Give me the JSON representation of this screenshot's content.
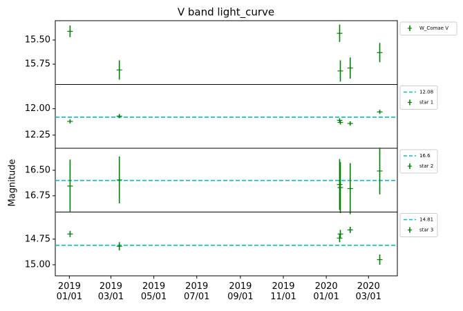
{
  "chart_data": {
    "type": "errorbar",
    "title": "V band light_curve",
    "ylabel": "Magnitude",
    "x": [
      "2019-01-02",
      "2019-03-13",
      "2020-01-20",
      "2020-01-21",
      "2020-02-04",
      "2020-03-17"
    ],
    "xlim": [
      "2018-12-12",
      "2020-04-11"
    ],
    "xticks": [
      {
        "value": "2019-01-01",
        "label": "2019\n01/01"
      },
      {
        "value": "2019-03-01",
        "label": "2019\n03/01"
      },
      {
        "value": "2019-05-01",
        "label": "2019\n05/01"
      },
      {
        "value": "2019-07-01",
        "label": "2019\n07/01"
      },
      {
        "value": "2019-09-01",
        "label": "2019\n09/01"
      },
      {
        "value": "2019-11-01",
        "label": "2019\n11/01"
      },
      {
        "value": "2020-01-01",
        "label": "2020\n01/01"
      },
      {
        "value": "2020-03-01",
        "label": "2020\n03/01"
      }
    ],
    "panels": [
      {
        "ylim": [
          15.96,
          15.3
        ],
        "yticks": [
          {
            "value": 15.5,
            "label": "15.50"
          },
          15.75
        ],
        "series": [
          {
            "name": "W_Comae V",
            "color": "#008000",
            "values": [
              15.41,
              15.81,
              15.43,
              15.82,
              15.79,
              15.63
            ],
            "errors": [
              0.06,
              0.1,
              0.09,
              0.11,
              0.11,
              0.1
            ]
          }
        ]
      },
      {
        "ylim": [
          12.375,
          11.77
        ],
        "yticks": [
          {
            "value": 12,
            "label": "12.00"
          },
          12.25
        ],
        "hline": {
          "value": 12.08,
          "color": "#00bfbf"
        },
        "series": [
          {
            "name": "star 1",
            "color": "#008000",
            "values": [
              12.12,
              12.07,
              12.11,
              12.13,
              12.14,
              12.03
            ],
            "errors": [
              0.02,
              0.02,
              0.02,
              0.02,
              0.02,
              0.02
            ]
          }
        ]
      },
      {
        "ylim": [
          16.91,
          16.284
        ],
        "yticks": [
          {
            "value": 16.5,
            "label": "16.50"
          },
          16.75
        ],
        "hline": {
          "value": 16.6,
          "color": "#00bfbf"
        },
        "series": [
          {
            "name": "star 2",
            "color": "#008000",
            "values": [
              16.655,
              16.595,
              16.64,
              16.67,
              16.68,
              16.507
            ],
            "errors": [
              0.26,
              0.23,
              0.25,
              0.25,
              0.25,
              0.23
            ]
          }
        ]
      },
      {
        "ylim": [
          15.108,
          14.486
        ],
        "yticks": [
          14.75,
          {
            "value": 15,
            "label": "15.00"
          }
        ],
        "hline": {
          "value": 14.81,
          "color": "#00bfbf"
        },
        "series": [
          {
            "name": "star 3",
            "color": "#008000",
            "values": [
              14.7,
              14.82,
              14.74,
              14.7,
              14.66,
              14.95
            ],
            "errors": [
              0.03,
              0.04,
              0.04,
              0.04,
              0.03,
              0.05
            ]
          }
        ]
      }
    ]
  }
}
